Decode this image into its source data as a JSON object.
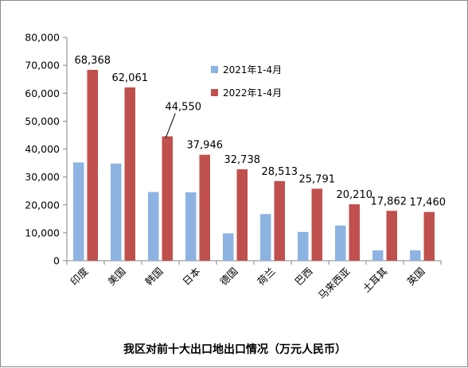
{
  "chart_data": {
    "type": "bar",
    "title": "我区对前十大出口地出口情况（万元人民币）",
    "categories": [
      "印度",
      "美国",
      "韩国",
      "日本",
      "德国",
      "荷兰",
      "巴西",
      "马来西亚",
      "土耳其",
      "英国"
    ],
    "series": [
      {
        "name": "2021年1-4月",
        "color": "#8db3e2",
        "values": [
          35200,
          34800,
          24600,
          24500,
          9800,
          16700,
          10300,
          12600,
          3700,
          3700
        ]
      },
      {
        "name": "2022年1-4月",
        "color": "#c0504d",
        "values": [
          68368,
          62061,
          44550,
          37946,
          32738,
          28513,
          25791,
          20210,
          17862,
          17460
        ],
        "data_labels": [
          "68,368",
          "62,061",
          "44,550",
          "37,946",
          "32,738",
          "28,513",
          "25,791",
          "20,210",
          "17,862",
          "17,460"
        ]
      }
    ],
    "ylim": [
      0,
      80000
    ],
    "yticks": [
      "0",
      "10,000",
      "20,000",
      "30,000",
      "40,000",
      "50,000",
      "60,000",
      "70,000",
      "80,000"
    ],
    "grid": false,
    "legend_position": "top-right"
  }
}
